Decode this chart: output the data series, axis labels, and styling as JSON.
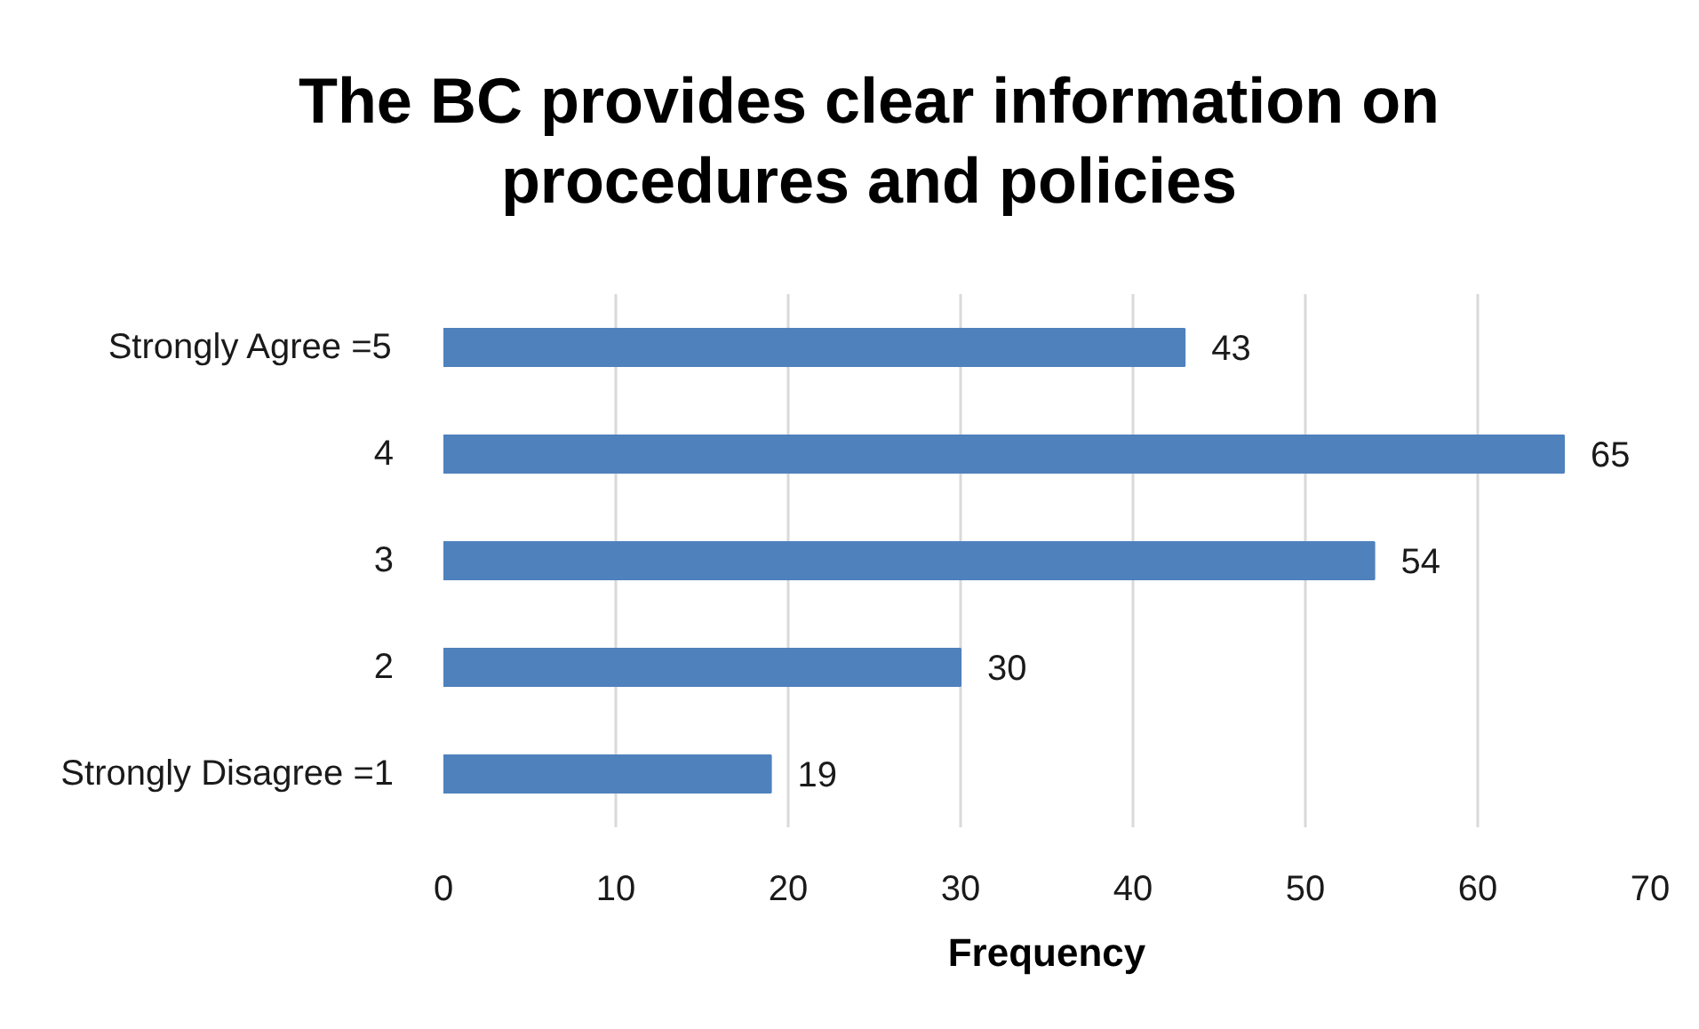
{
  "chart_data": {
    "type": "bar",
    "orientation": "horizontal",
    "title": "The BC provides clear information on procedures and policies",
    "xlabel": "Frequency",
    "categories": [
      "Strongly Agree =5",
      "4",
      "3",
      "2",
      "Strongly Disagree =1"
    ],
    "values": [
      43,
      65,
      54,
      30,
      19
    ],
    "color": "#4f81bd",
    "xlim": [
      0,
      70
    ],
    "xticks": [
      0,
      10,
      20,
      30,
      40,
      50,
      60,
      70
    ],
    "grid": "x",
    "data_labels": true
  }
}
